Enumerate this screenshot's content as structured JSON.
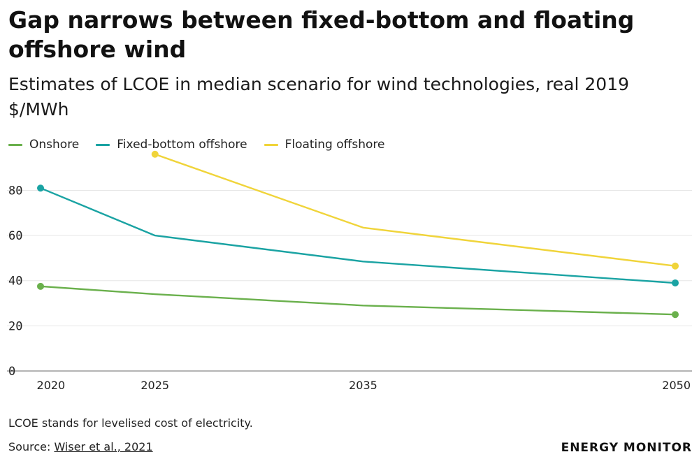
{
  "header": {
    "title": "Gap narrows between fixed-bottom and floating offshore wind",
    "subtitle": "Estimates of LCOE in median scenario for wind technologies, real 2019 $/MWh"
  },
  "chart_data": {
    "type": "line",
    "title": "Gap narrows between fixed-bottom and floating offshore wind",
    "subtitle": "Estimates of LCOE in median scenario for wind technologies, real 2019 $/MWh",
    "xlabel": "",
    "ylabel": "",
    "x_ticks": [
      "2020",
      "2025",
      "2035",
      "2050"
    ],
    "y_ticks": [
      "0",
      "20",
      "40",
      "60",
      "80"
    ],
    "xlim": [
      2019.5,
      2050
    ],
    "ylim": [
      0,
      95
    ],
    "grid": true,
    "legend_position": "top-left",
    "series": [
      {
        "name": "Onshore",
        "color": "#6ab04c",
        "points": [
          [
            2019.5,
            37.5
          ],
          [
            2025,
            34
          ],
          [
            2035,
            29
          ],
          [
            2050,
            25
          ]
        ],
        "markers": [
          [
            2019.5,
            37.5
          ],
          [
            2050,
            25
          ]
        ]
      },
      {
        "name": "Fixed-bottom offshore",
        "color": "#1aa3a3",
        "points": [
          [
            2019.5,
            81
          ],
          [
            2025,
            60
          ],
          [
            2035,
            48.5
          ],
          [
            2050,
            39
          ]
        ],
        "markers": [
          [
            2019.5,
            81
          ],
          [
            2050,
            39
          ]
        ]
      },
      {
        "name": "Floating offshore",
        "color": "#f0d43a",
        "points": [
          [
            2025,
            96
          ],
          [
            2035,
            63.5
          ],
          [
            2050,
            46.5
          ]
        ],
        "markers": [
          [
            2025,
            96
          ],
          [
            2050,
            46.5
          ]
        ]
      }
    ]
  },
  "footer": {
    "note": "LCOE stands for levelised cost of electricity.",
    "source_prefix": "Source: ",
    "source_link": "Wiser et al., 2021",
    "logo": "ENERGY MONITOR"
  }
}
